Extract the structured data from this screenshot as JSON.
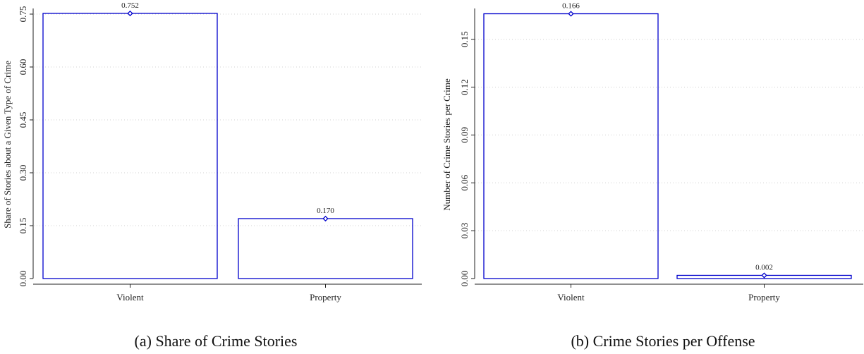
{
  "chart_data": [
    {
      "type": "bar",
      "categories": [
        "Violent",
        "Property"
      ],
      "values": [
        0.752,
        0.17
      ],
      "data_labels": [
        "0.752",
        "0.170"
      ],
      "ylabel": "Share of Stories about a Given Type of Crime",
      "ylim": [
        0,
        0.76
      ],
      "yticks": [
        "0.00",
        "0.15",
        "0.30",
        "0.45",
        "0.60",
        "0.75"
      ],
      "caption": "(a) Share of Crime Stories",
      "bar_color": "#0000cc",
      "grid": "horizontal dotted"
    },
    {
      "type": "bar",
      "categories": [
        "Violent",
        "Property"
      ],
      "values": [
        0.166,
        0.002
      ],
      "data_labels": [
        "0.166",
        "0.002"
      ],
      "ylabel": "Number of Crime Stories per Crime",
      "ylim": [
        0,
        0.168
      ],
      "yticks": [
        "0.00",
        "0.03",
        "0.06",
        "0.09",
        "0.12",
        "0.15"
      ],
      "caption": "(b) Crime Stories per Offense",
      "bar_color": "#0000cc",
      "grid": "horizontal dotted"
    }
  ]
}
